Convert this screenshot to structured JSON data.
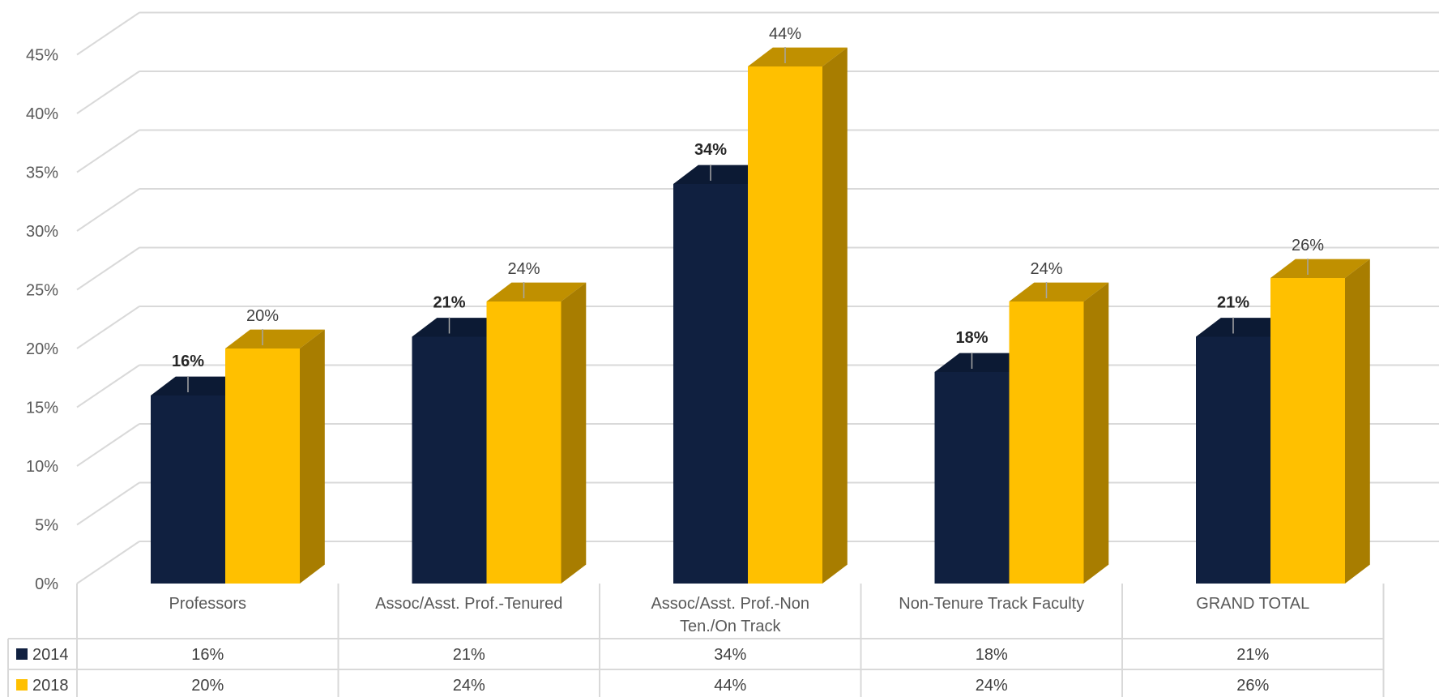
{
  "chart_data": {
    "type": "bar",
    "categories": [
      "Professors",
      "Assoc/Asst. Prof.-Tenured",
      "Assoc/Asst. Prof.-Non Ten./On Track",
      "Non-Tenure Track Faculty",
      "GRAND TOTAL"
    ],
    "category_lines": [
      [
        "Professors"
      ],
      [
        "Assoc/Asst. Prof.-Tenured"
      ],
      [
        "Assoc/Asst. Prof.-Non",
        "Ten./On Track"
      ],
      [
        "Non-Tenure Track Faculty"
      ],
      [
        "GRAND TOTAL"
      ]
    ],
    "series": [
      {
        "name": "2014",
        "values": [
          16,
          21,
          34,
          18,
          21
        ],
        "labels": [
          "16%",
          "21%",
          "34%",
          "18%",
          "21%"
        ],
        "color": "#102040"
      },
      {
        "name": "2018",
        "values": [
          20,
          24,
          44,
          24,
          26
        ],
        "labels": [
          "20%",
          "24%",
          "44%",
          "24%",
          "26%"
        ],
        "color": "#FFC000"
      }
    ],
    "y_ticks": [
      "0%",
      "5%",
      "10%",
      "15%",
      "20%",
      "25%",
      "30%",
      "35%",
      "40%",
      "45%"
    ],
    "ylim": [
      0,
      45
    ],
    "grid": true,
    "data_table": true,
    "three_d": true
  }
}
